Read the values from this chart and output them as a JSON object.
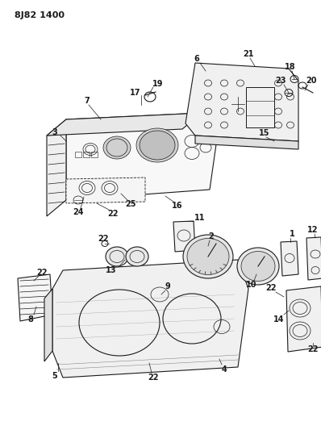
{
  "title": "8J82 1400",
  "background_color": "#ffffff",
  "line_color": "#1a1a1a",
  "figsize": [
    3.98,
    5.33
  ],
  "dpi": 100
}
